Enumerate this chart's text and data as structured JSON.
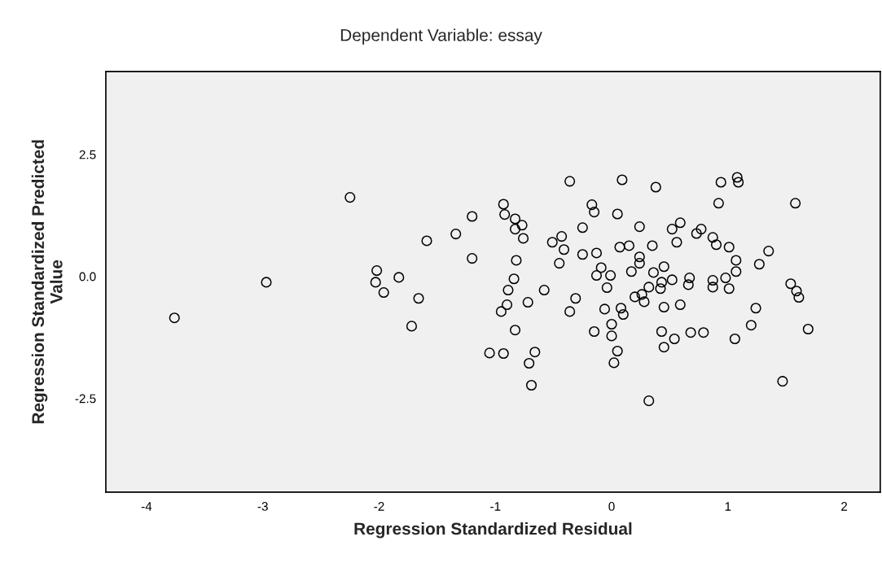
{
  "chart_data": {
    "type": "scatter",
    "title": "Dependent Variable: essay",
    "xlabel": "Regression Standardized Residual",
    "ylabel": "Regression Standardized Predicted\nValue",
    "x": [
      -3.76,
      -2.97,
      -2.25,
      -2.02,
      -2.03,
      -1.96,
      -1.83,
      -1.66,
      -1.72,
      -1.59,
      -1.34,
      -1.2,
      -1.2,
      -0.93,
      -0.92,
      -0.83,
      -0.77,
      -0.83,
      -0.76,
      -0.82,
      -0.84,
      -0.89,
      -0.9,
      -0.95,
      -0.83,
      -0.72,
      -0.58,
      -1.05,
      -0.93,
      -0.66,
      -0.71,
      -0.69,
      -0.36,
      0.09,
      -0.17,
      -0.15,
      0.05,
      -0.25,
      -0.43,
      -0.51,
      -0.41,
      -0.45,
      -0.25,
      -0.13,
      0.07,
      -0.09,
      -0.13,
      -0.01,
      -0.04,
      -0.31,
      -0.36,
      -0.06,
      0.08,
      0.1,
      0.0,
      0.0,
      -0.15,
      0.05,
      0.02,
      0.38,
      0.94,
      1.08,
      1.09,
      0.92,
      1.58,
      0.24,
      0.52,
      0.59,
      0.73,
      0.77,
      0.87,
      0.9,
      1.01,
      1.35,
      1.27,
      1.07,
      1.07,
      0.98,
      0.87,
      0.87,
      1.01,
      0.15,
      0.35,
      0.56,
      0.24,
      0.24,
      0.17,
      0.36,
      0.45,
      0.52,
      0.43,
      0.42,
      0.32,
      0.67,
      0.66,
      0.2,
      0.26,
      0.28,
      0.45,
      0.59,
      0.43,
      0.54,
      0.45,
      0.68,
      0.79,
      1.06,
      1.2,
      1.24,
      1.54,
      1.59,
      1.61,
      1.69,
      1.47,
      0.32
    ],
    "values": [
      -0.85,
      -0.12,
      1.62,
      0.12,
      -0.12,
      -0.33,
      -0.02,
      -0.45,
      -1.02,
      0.73,
      0.87,
      1.23,
      0.37,
      1.48,
      1.27,
      1.18,
      1.05,
      0.97,
      0.78,
      0.33,
      -0.05,
      -0.28,
      -0.58,
      -0.72,
      -1.1,
      -0.53,
      -0.28,
      -1.57,
      -1.58,
      -1.55,
      -1.78,
      -2.23,
      1.95,
      1.98,
      1.47,
      1.32,
      1.28,
      1.0,
      0.82,
      0.7,
      0.55,
      0.27,
      0.45,
      0.48,
      0.6,
      0.18,
      0.02,
      0.02,
      -0.23,
      -0.45,
      -0.72,
      -0.67,
      -0.65,
      -0.78,
      -0.98,
      -1.22,
      -1.13,
      -1.53,
      -1.77,
      1.83,
      1.93,
      2.03,
      1.93,
      1.5,
      1.5,
      1.02,
      0.97,
      1.1,
      0.88,
      0.97,
      0.8,
      0.65,
      0.6,
      0.52,
      0.25,
      0.33,
      0.1,
      -0.03,
      -0.08,
      -0.22,
      -0.25,
      0.63,
      0.63,
      0.7,
      0.4,
      0.27,
      0.1,
      0.08,
      0.2,
      -0.07,
      -0.12,
      -0.25,
      -0.22,
      -0.03,
      -0.17,
      -0.42,
      -0.37,
      -0.52,
      -0.63,
      -0.58,
      -1.13,
      -1.28,
      -1.45,
      -1.15,
      -1.15,
      -1.28,
      -1.0,
      -0.65,
      -0.15,
      -0.3,
      -0.43,
      -1.08,
      -2.15,
      -2.55
    ],
    "color": "#000000",
    "marker": "circle",
    "grid": false,
    "xlim": [
      -4.35,
      2.31
    ],
    "xticks": [
      -4,
      -3,
      -2,
      -1,
      0,
      1,
      2
    ],
    "ylim": [
      -4.42,
      4.2
    ],
    "yticks": [
      {
        "value": -2.5,
        "label": "-2.5"
      },
      {
        "value": 0,
        "label": "0.0"
      },
      2.5
    ]
  }
}
